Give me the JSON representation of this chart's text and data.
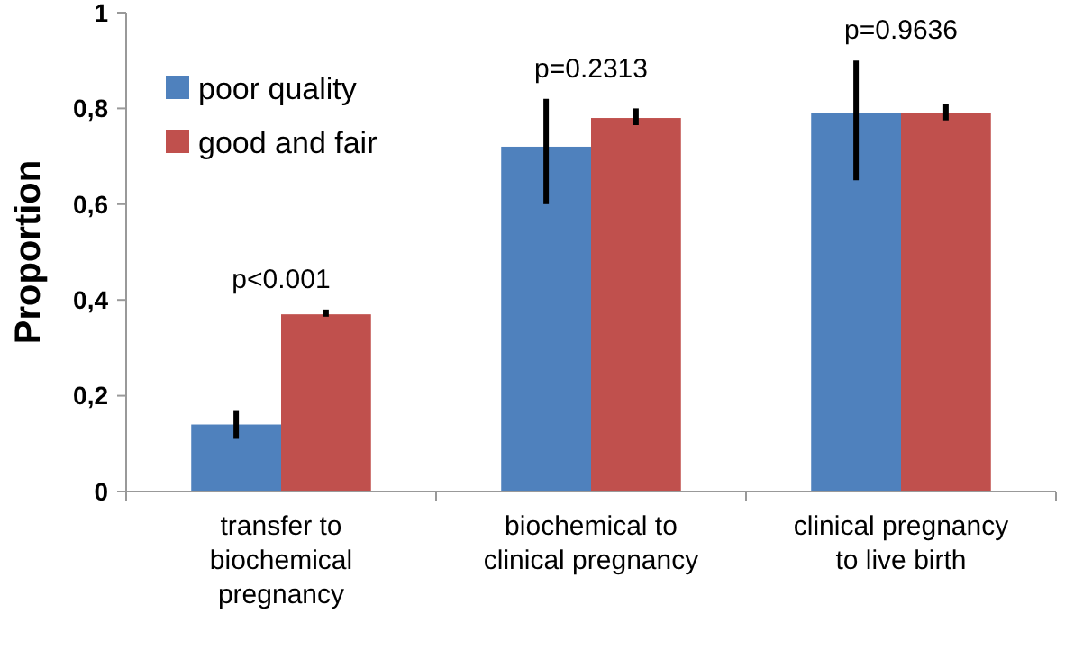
{
  "chart_data": {
    "type": "bar",
    "ylabel": "Proportion",
    "categories": [
      "transfer to biochemical pregnancy",
      "biochemical to clinical pregnancy",
      "clinical pregnancy to live birth"
    ],
    "series": [
      {
        "name": "poor quality",
        "color": "#4f81bd",
        "values": [
          0.14,
          0.72,
          0.79
        ],
        "errors": [
          [
            0.11,
            0.17
          ],
          [
            0.6,
            0.82
          ],
          [
            0.65,
            0.9
          ]
        ]
      },
      {
        "name": "good and fair",
        "color": "#c0504d",
        "values": [
          0.37,
          0.78,
          0.79
        ],
        "errors": [
          [
            0.365,
            0.38
          ],
          [
            0.765,
            0.8
          ],
          [
            0.775,
            0.81
          ]
        ]
      }
    ],
    "ylim": [
      0,
      1
    ],
    "yticks": [
      0,
      {
        "value": 0.2,
        "label": "0,2"
      },
      {
        "value": 0.4,
        "label": "0,4"
      },
      {
        "value": 0.6,
        "label": "0,6"
      },
      {
        "value": 0.8,
        "label": "0,8"
      },
      1
    ],
    "annotations": [
      "p<0.001",
      "p=0.2313",
      "p=0.9636"
    ],
    "legend": "top left",
    "grid": false
  }
}
